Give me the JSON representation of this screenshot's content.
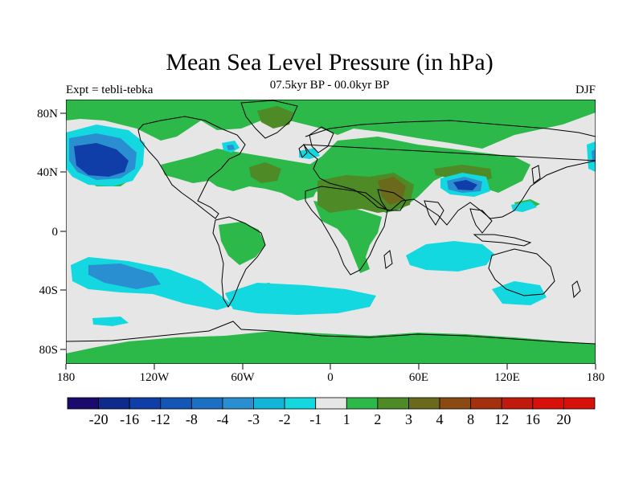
{
  "map": {
    "title": "Mean Sea Level Pressure (in hPa)",
    "left_string": "Expt = tebli-tebka",
    "center_string": "07.5kyr BP - 00.0kyr BP",
    "right_string": "DJF",
    "projection": "cylindrical equidistant",
    "background_color": "#e6e6e6",
    "lon_ticks": [
      "180",
      "120W",
      "60W",
      "0",
      "60E",
      "120E",
      "180"
    ],
    "lat_ticks": [
      "80N",
      "40N",
      "0",
      "40S",
      "80S"
    ]
  },
  "colorbar": {
    "labels": [
      "-20",
      "-16",
      "-12",
      "-8",
      "-4",
      "-3",
      "-2",
      "-1",
      "1",
      "2",
      "3",
      "4",
      "8",
      "12",
      "16",
      "20"
    ],
    "colors": [
      "#1a0a6e",
      "#0d2a8c",
      "#0f3ea8",
      "#1356b5",
      "#1b70c4",
      "#2a8fd0",
      "#12b4d8",
      "#14d8e0",
      "#e6e6e6",
      "#2db84a",
      "#4e8a26",
      "#6b6a1c",
      "#8a4a12",
      "#a5300e",
      "#c01a0c",
      "#d8100a"
    ]
  },
  "colors": {
    "ocean_grey": "#e6e6e6",
    "positive_light": "#2db84a",
    "positive_mid": "#4e8a26",
    "positive_strong": "#6b6a1c",
    "negative_light": "#14d8e0",
    "negative_mid": "#2a8fd0",
    "negative_strong": "#0f3ea8",
    "coast": "#000000"
  }
}
